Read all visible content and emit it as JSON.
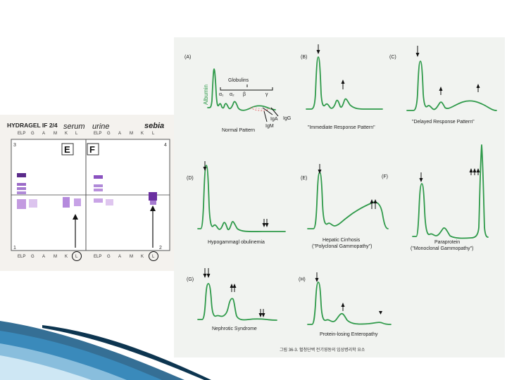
{
  "gel": {
    "title": "HYDRAGEL IF 2/4",
    "serum_label": "serum",
    "urine_label": "urine",
    "brand": "sebia",
    "top_lanes": [
      "ELP",
      "G",
      "A",
      "M",
      "K",
      "L",
      "ELP",
      "G",
      "A",
      "M",
      "K",
      "L"
    ],
    "bottom_lanes": [
      "ELP",
      "G",
      "A",
      "M",
      "K",
      "L",
      "ELP",
      "G",
      "A",
      "M",
      "K",
      "L"
    ],
    "box_e": "E",
    "box_f": "F",
    "corner_3": "3",
    "corner_4": "4",
    "corner_1": "1",
    "corner_2": "2"
  },
  "panels": {
    "a": {
      "letter": "(A)",
      "albumin": "Albumin",
      "globulins": "Globulins",
      "a1": "α₁",
      "a2": "α₂",
      "beta": "β",
      "gamma": "γ",
      "iga": "IgA",
      "igg": "IgG",
      "igm": "IgM",
      "caption": "Normal Pattern"
    },
    "b": {
      "letter": "(B)",
      "caption": "\"Immediate Response Pattern\""
    },
    "c": {
      "letter": "(C)",
      "caption": "\"Delayed Response Pattern\""
    },
    "d": {
      "letter": "(D)",
      "caption": "Hypogammagl obulinemia"
    },
    "e": {
      "letter": "(E)",
      "caption1": "Hepatic Cirrhosis",
      "caption2": "(\"Polyclonal Gammopathy\")"
    },
    "f": {
      "letter": "(F)"
    },
    "para": {
      "caption1": "Paraprotein",
      "caption2": "(\"Monoclonal Gammopathy\")"
    },
    "g": {
      "letter": "(G)",
      "caption": "Nephrotic Syndrome"
    },
    "h": {
      "letter": "(H)",
      "caption": "Protein-losing Enteropathy"
    }
  },
  "figure_caption": "그림 36-3. 혈청단백 전기영동의 임상병리학 요소",
  "colors": {
    "curve": "#2f9a4a",
    "band": "#7b3fb0",
    "deco": "#2a86b8"
  }
}
